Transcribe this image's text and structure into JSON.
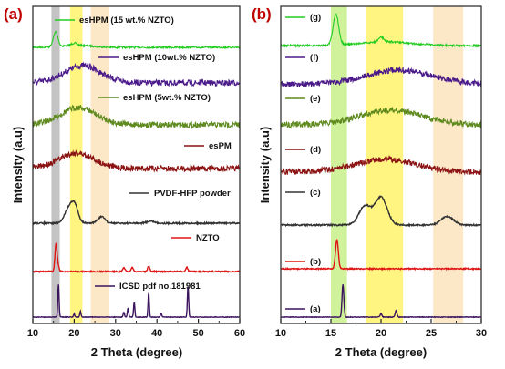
{
  "panels": [
    {
      "label": "(a)",
      "xlabel": "2 Theta (degree)",
      "ylabel": "Intensity (a.u)",
      "xlim": [
        10,
        60
      ],
      "xticks": [
        "10",
        "20",
        "30",
        "40",
        "50",
        "60"
      ],
      "bands": [
        {
          "from": 14.5,
          "to": 16.5,
          "color": "#b8b8b8"
        },
        {
          "from": 19.0,
          "to": 22.0,
          "color": "#fff36a"
        },
        {
          "from": 24.0,
          "to": 28.5,
          "color": "#fbe3bd"
        }
      ],
      "series": [
        {
          "name": "esHPM (15 wt.% NZTO)",
          "color": "#22cc22"
        },
        {
          "name": "esHPM (10wt.% NZTO)",
          "color": "#4b1a8a"
        },
        {
          "name": "esHPM (5wt.% NZTO)",
          "color": "#5e8a1e"
        },
        {
          "name": "esPM",
          "color": "#8b1212"
        },
        {
          "name": "PVDF-HFP powder",
          "color": "#333333"
        },
        {
          "name": "NZTO",
          "color": "#e01515"
        },
        {
          "name": "ICSD pdf no.181981",
          "color": "#3c145e"
        }
      ]
    },
    {
      "label": "(b)",
      "xlabel": "2 Theta (degree)",
      "ylabel": "Intensity (a.u)",
      "xlim": [
        10,
        30
      ],
      "xticks": [
        "10",
        "15",
        "20",
        "25",
        "30"
      ],
      "bands": [
        {
          "from": 15.0,
          "to": 16.6,
          "color": "#c7f08a"
        },
        {
          "from": 18.5,
          "to": 22.2,
          "color": "#fff36a"
        },
        {
          "from": 25.2,
          "to": 28.2,
          "color": "#fbe3bd"
        }
      ],
      "series": [
        {
          "name": "(g)",
          "color": "#22cc22"
        },
        {
          "name": "(f)",
          "color": "#4b1a8a"
        },
        {
          "name": "(e)",
          "color": "#5e8a1e"
        },
        {
          "name": "(d)",
          "color": "#8b1212"
        },
        {
          "name": "(c)",
          "color": "#333333"
        },
        {
          "name": "(b)",
          "color": "#e01515"
        },
        {
          "name": "(a)",
          "color": "#3c145e"
        }
      ]
    }
  ],
  "chart_data": [
    {
      "type": "line",
      "title": "(a)",
      "xlabel": "2 Theta (degree)",
      "ylabel": "Intensity (a.u)",
      "xlim": [
        10,
        60
      ],
      "grid": false,
      "series": [
        {
          "name": "esHPM (15 wt.% NZTO)",
          "peaks": [
            [
              15.5,
              1.0
            ],
            [
              20.0,
              0.15
            ]
          ]
        },
        {
          "name": "esHPM (10wt.% NZTO)",
          "peaks": [
            [
              22.0,
              0.35
            ]
          ]
        },
        {
          "name": "esHPM (5wt.% NZTO)",
          "peaks": [
            [
              21.0,
              0.4
            ]
          ]
        },
        {
          "name": "esPM",
          "peaks": [
            [
              20.5,
              0.35
            ]
          ]
        },
        {
          "name": "PVDF-HFP powder",
          "peaks": [
            [
              18.4,
              0.45
            ],
            [
              20.0,
              0.75
            ],
            [
              26.6,
              0.25
            ],
            [
              38.5,
              0.08
            ]
          ]
        },
        {
          "name": "NZTO",
          "peaks": [
            [
              15.6,
              1.0
            ],
            [
              16.1,
              0.2
            ],
            [
              32.0,
              0.15
            ],
            [
              34.0,
              0.15
            ],
            [
              38.0,
              0.2
            ],
            [
              47.2,
              0.15
            ]
          ]
        },
        {
          "name": "ICSD pdf no.181981",
          "peaks": [
            [
              16.2,
              1.0
            ],
            [
              20.0,
              0.1
            ],
            [
              21.5,
              0.18
            ],
            [
              32.0,
              0.15
            ],
            [
              33.0,
              0.28
            ],
            [
              34.5,
              0.45
            ],
            [
              38.0,
              0.75
            ],
            [
              41.0,
              0.12
            ],
            [
              47.5,
              0.95
            ]
          ]
        }
      ]
    },
    {
      "type": "line",
      "title": "(b)",
      "xlabel": "2 Theta (degree)",
      "ylabel": "Intensity (a.u)",
      "xlim": [
        10,
        30
      ],
      "grid": false,
      "series": [
        {
          "name": "(g)",
          "peaks": [
            [
              15.5,
              1.0
            ],
            [
              20.0,
              0.15
            ]
          ]
        },
        {
          "name": "(f)",
          "peaks": [
            [
              21.5,
              0.35
            ]
          ]
        },
        {
          "name": "(e)",
          "peaks": [
            [
              21.0,
              0.35
            ]
          ]
        },
        {
          "name": "(d)",
          "peaks": [
            [
              20.5,
              0.3
            ]
          ]
        },
        {
          "name": "(c)",
          "peaks": [
            [
              18.4,
              0.55
            ],
            [
              20.0,
              0.8
            ],
            [
              26.6,
              0.25
            ]
          ]
        },
        {
          "name": "(b)",
          "peaks": [
            [
              15.6,
              1.0
            ]
          ]
        },
        {
          "name": "(a)",
          "peaks": [
            [
              16.2,
              1.0
            ],
            [
              20.0,
              0.1
            ],
            [
              21.5,
              0.2
            ]
          ]
        }
      ]
    }
  ]
}
